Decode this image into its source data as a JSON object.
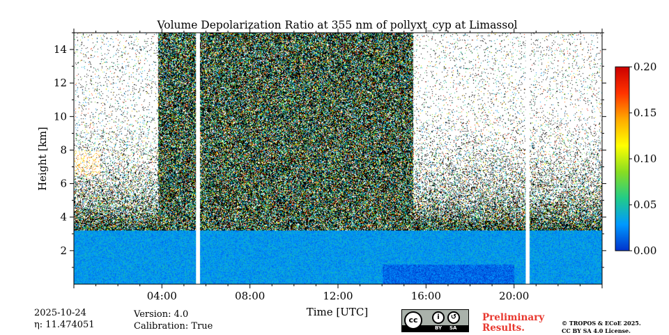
{
  "chart_data": {
    "type": "heatmap",
    "title": "Volume Depolarization Ratio at 355 nm of pollyxt_cyp at Limassol",
    "xlabel": "Time [UTC]",
    "ylabel": "Height [km]",
    "xlim_hours": [
      0,
      24
    ],
    "ylim_km": [
      0,
      15
    ],
    "x_ticks": [
      {
        "hour": 4,
        "label": "04:00"
      },
      {
        "hour": 8,
        "label": "08:00"
      },
      {
        "hour": 12,
        "label": "12:00"
      },
      {
        "hour": 16,
        "label": "16:00"
      },
      {
        "hour": 20,
        "label": "20:00"
      }
    ],
    "y_ticks": [
      {
        "km": 2,
        "label": "2"
      },
      {
        "km": 4,
        "label": "4"
      },
      {
        "km": 6,
        "label": "6"
      },
      {
        "km": 8,
        "label": "8"
      },
      {
        "km": 10,
        "label": "10"
      },
      {
        "km": 12,
        "label": "12"
      },
      {
        "km": 14,
        "label": "14"
      }
    ],
    "colorbar": {
      "range": [
        0.0,
        0.2
      ],
      "ticks": [
        {
          "value": 0.0,
          "label": "0.00"
        },
        {
          "value": 0.05,
          "label": "0.05"
        },
        {
          "value": 0.1,
          "label": "0.10"
        },
        {
          "value": 0.15,
          "label": "0.15"
        },
        {
          "value": 0.2,
          "label": "0.20"
        }
      ],
      "colors": [
        "#0033cc",
        "#0099ff",
        "#22cc88",
        "#88dd22",
        "#ffff00",
        "#ffaa00",
        "#ff3300",
        "#cc0000"
      ]
    },
    "data_gaps_hours": [
      [
        5.55,
        5.72
      ],
      [
        20.53,
        20.68
      ]
    ],
    "noisy_period_hours": [
      3.8,
      15.4
    ],
    "aerosol_layer": {
      "top_km": 3.2,
      "depolarization": 0.03
    },
    "elevated_layer": {
      "start_hour": 0.0,
      "end_hour": 1.2,
      "base_km": 6.5,
      "top_km": 8.0,
      "depolarization": 0.14
    }
  },
  "footer": {
    "date": "2025-10-24",
    "eta": "η: 11.474051",
    "version": "Version: 4.0",
    "calibration": "Calibration: True",
    "preliminary_line1": "Preliminary",
    "preliminary_line2": "Results.",
    "copyright_line1": "© TROPOS & ECoE 2025.",
    "copyright_line2": "CC BY SA 4.0 License.",
    "license_badge": {
      "cc": "cc",
      "by": "BY",
      "sa": "SA"
    }
  }
}
